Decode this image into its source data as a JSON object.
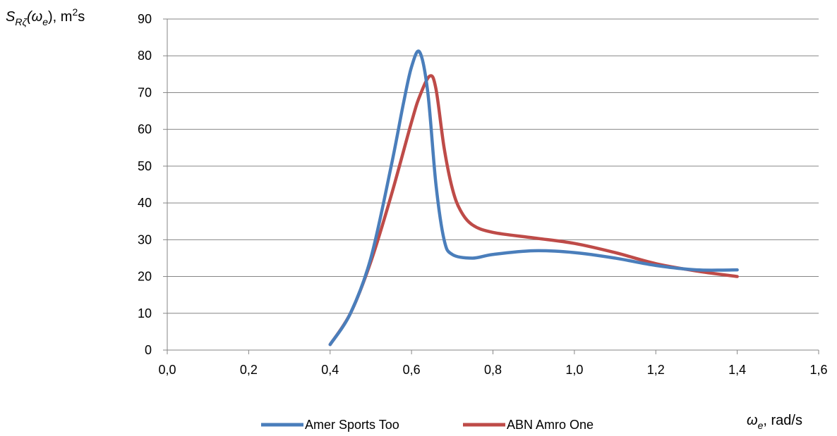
{
  "chart_data": {
    "type": "line",
    "title": "",
    "ylabel": {
      "main": "S",
      "subscript": "Rζ",
      "arg_open": "(ω",
      "arg_sub": "e",
      "arg_close": "), m",
      "sup": "2",
      "tail": "s"
    },
    "xlabel": {
      "main": "ω",
      "subscript": "e",
      "tail": ", rad/s"
    },
    "xlim": [
      0.0,
      1.6
    ],
    "ylim": [
      0,
      90
    ],
    "x_ticks": [
      "0,0",
      "0,2",
      "0,4",
      "0,6",
      "0,8",
      "1,0",
      "1,2",
      "1,4",
      "1,6"
    ],
    "y_ticks": [
      "0",
      "10",
      "20",
      "30",
      "40",
      "50",
      "60",
      "70",
      "80",
      "90"
    ],
    "grid": "horizontal",
    "legend_position": "bottom",
    "series": [
      {
        "name": "Amer Sports Too",
        "color": "#4A7EBB",
        "points": [
          [
            0.4,
            1.5
          ],
          [
            0.45,
            10
          ],
          [
            0.5,
            25
          ],
          [
            0.55,
            50
          ],
          [
            0.58,
            67
          ],
          [
            0.6,
            77
          ],
          [
            0.62,
            81
          ],
          [
            0.64,
            70
          ],
          [
            0.66,
            45
          ],
          [
            0.68,
            30
          ],
          [
            0.7,
            26
          ],
          [
            0.75,
            25
          ],
          [
            0.8,
            26
          ],
          [
            0.9,
            27
          ],
          [
            1.0,
            26.5
          ],
          [
            1.1,
            25
          ],
          [
            1.2,
            23
          ],
          [
            1.3,
            21.8
          ],
          [
            1.4,
            21.8
          ]
        ]
      },
      {
        "name": "ABN Amro One",
        "color": "#BE4B48",
        "points": [
          [
            0.4,
            1.5
          ],
          [
            0.45,
            10
          ],
          [
            0.5,
            24
          ],
          [
            0.55,
            42
          ],
          [
            0.6,
            62
          ],
          [
            0.62,
            69
          ],
          [
            0.645,
            74.5
          ],
          [
            0.66,
            71
          ],
          [
            0.68,
            55
          ],
          [
            0.7,
            44
          ],
          [
            0.72,
            38
          ],
          [
            0.75,
            34
          ],
          [
            0.8,
            32
          ],
          [
            0.9,
            30.5
          ],
          [
            1.0,
            29
          ],
          [
            1.1,
            26.5
          ],
          [
            1.2,
            23.5
          ],
          [
            1.3,
            21.5
          ],
          [
            1.4,
            20
          ]
        ]
      }
    ]
  }
}
